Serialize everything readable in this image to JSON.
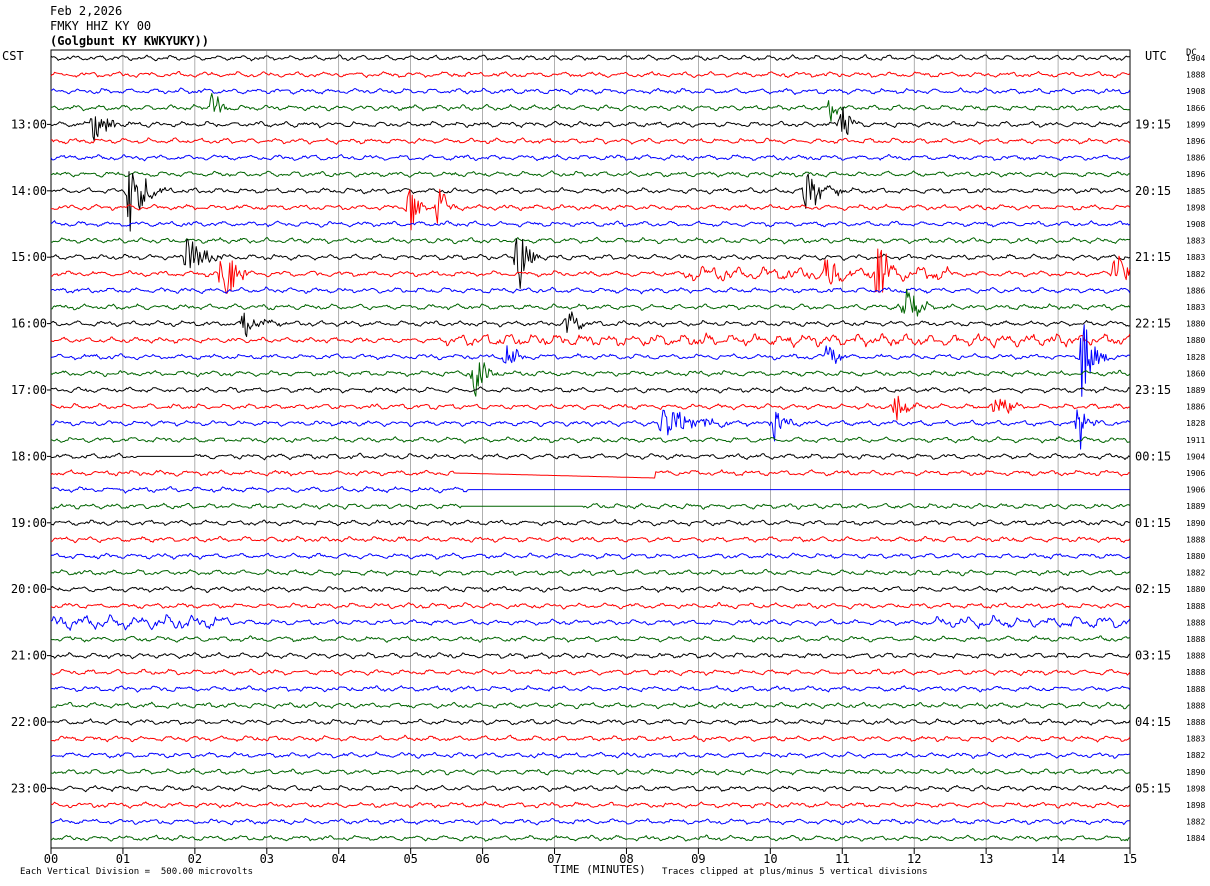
{
  "header": {
    "date": "Feb 2,2026",
    "station": "FMKY HHZ KY 00",
    "location": "(Golgbunt KY KWKYUKY))"
  },
  "axis_labels": {
    "left": "CST",
    "right": "UTC",
    "dc": "DC"
  },
  "footer": {
    "left": "Each Vertical Division =  500.00 microvolts",
    "right": "Traces clipped at plus/minus 5 vertical divisions",
    "xlabel": "TIME (MINUTES)"
  },
  "chart_data": {
    "type": "line",
    "subtype": "helicorder",
    "xlabel": "TIME (MINUTES)",
    "xlim": [
      0,
      15
    ],
    "x_ticks": [
      "00",
      "01",
      "02",
      "03",
      "04",
      "05",
      "06",
      "07",
      "08",
      "09",
      "10",
      "11",
      "12",
      "13",
      "14",
      "15"
    ],
    "trace_count": 48,
    "minutes_per_trace": 15,
    "trace_colors": [
      "#000000",
      "#ff0000",
      "#0000ff",
      "#006400"
    ],
    "left_time_labels": [
      {
        "trace": 4,
        "label": "13:00"
      },
      {
        "trace": 8,
        "label": "14:00"
      },
      {
        "trace": 12,
        "label": "15:00"
      },
      {
        "trace": 16,
        "label": "16:00"
      },
      {
        "trace": 20,
        "label": "17:00"
      },
      {
        "trace": 24,
        "label": "18:00"
      },
      {
        "trace": 28,
        "label": "19:00"
      },
      {
        "trace": 32,
        "label": "20:00"
      },
      {
        "trace": 36,
        "label": "21:00"
      },
      {
        "trace": 40,
        "label": "22:00"
      },
      {
        "trace": 44,
        "label": "23:00"
      }
    ],
    "right_time_labels": [
      {
        "trace": 4,
        "label": "19:15"
      },
      {
        "trace": 8,
        "label": "20:15"
      },
      {
        "trace": 12,
        "label": "21:15"
      },
      {
        "trace": 16,
        "label": "22:15"
      },
      {
        "trace": 20,
        "label": "23:15"
      },
      {
        "trace": 24,
        "label": "00:15"
      },
      {
        "trace": 28,
        "label": "01:15"
      },
      {
        "trace": 32,
        "label": "02:15"
      },
      {
        "trace": 36,
        "label": "03:15"
      },
      {
        "trace": 40,
        "label": "04:15"
      },
      {
        "trace": 44,
        "label": "05:15"
      }
    ],
    "dc_offsets": [
      "1904",
      "1888",
      "1908",
      "1866",
      "1899",
      "1896",
      "1886",
      "1896",
      "1885",
      "1898",
      "1908",
      "1883",
      "1883",
      "1882",
      "1886",
      "1883",
      "1880",
      "1880",
      "1828",
      "1860",
      "1889",
      "1886",
      "1828",
      "1911",
      "1904",
      "1906",
      "1906",
      "1889",
      "1890",
      "1888",
      "1880",
      "1882",
      "1880",
      "1888",
      "1888",
      "1888",
      "1888",
      "1888",
      "1888",
      "1888",
      "1888",
      "1883",
      "1882",
      "1890",
      "1898",
      "1898",
      "1882",
      "1884"
    ],
    "bursts": [
      {
        "trace": 4,
        "minute": 0.6,
        "amp": 16,
        "dur": 0.6
      },
      {
        "trace": 3,
        "minute": 2.25,
        "amp": 22,
        "dur": 0.25
      },
      {
        "trace": 3,
        "minute": 10.85,
        "amp": 16,
        "dur": 0.2
      },
      {
        "trace": 4,
        "minute": 11.0,
        "amp": 28,
        "dur": 0.25
      },
      {
        "trace": 8,
        "minute": 1.1,
        "amp": 45,
        "dur": 0.5
      },
      {
        "trace": 8,
        "minute": 10.5,
        "amp": 20,
        "dur": 0.8
      },
      {
        "trace": 9,
        "minute": 5.0,
        "amp": 32,
        "dur": 0.25
      },
      {
        "trace": 9,
        "minute": 5.4,
        "amp": 28,
        "dur": 0.25
      },
      {
        "trace": 12,
        "minute": 1.9,
        "amp": 22,
        "dur": 0.6
      },
      {
        "trace": 13,
        "minute": 2.4,
        "amp": 45,
        "dur": 0.35
      },
      {
        "trace": 12,
        "minute": 6.5,
        "amp": 40,
        "dur": 0.3
      },
      {
        "trace": 13,
        "minute": 10.8,
        "amp": 22,
        "dur": 0.3
      },
      {
        "trace": 13,
        "minute": 11.5,
        "amp": 38,
        "dur": 0.3
      },
      {
        "trace": 13,
        "minute": 14.8,
        "amp": 30,
        "dur": 0.3
      },
      {
        "trace": 15,
        "minute": 11.85,
        "amp": 32,
        "dur": 0.45
      },
      {
        "trace": 16,
        "minute": 2.7,
        "amp": 14,
        "dur": 0.6
      },
      {
        "trace": 16,
        "minute": 7.2,
        "amp": 18,
        "dur": 0.3
      },
      {
        "trace": 18,
        "minute": 6.35,
        "amp": 16,
        "dur": 0.3
      },
      {
        "trace": 18,
        "minute": 10.8,
        "amp": 16,
        "dur": 0.3
      },
      {
        "trace": 18,
        "minute": 14.35,
        "amp": 60,
        "dur": 0.35
      },
      {
        "trace": 19,
        "minute": 5.9,
        "amp": 24,
        "dur": 0.4
      },
      {
        "trace": 21,
        "minute": 11.75,
        "amp": 18,
        "dur": 0.35
      },
      {
        "trace": 21,
        "minute": 13.15,
        "amp": 30,
        "dur": 0.3
      },
      {
        "trace": 22,
        "minute": 8.5,
        "amp": 18,
        "dur": 1.2
      },
      {
        "trace": 22,
        "minute": 10.05,
        "amp": 16,
        "dur": 0.4
      },
      {
        "trace": 22,
        "minute": 14.3,
        "amp": 30,
        "dur": 0.25
      }
    ],
    "noisy_spans": [
      {
        "trace": 34,
        "from": 0,
        "to": 2.5,
        "amp": 7
      },
      {
        "trace": 34,
        "from": 12.3,
        "to": 15,
        "amp": 6
      },
      {
        "trace": 13,
        "from": 8.8,
        "to": 12.5,
        "amp": 7
      },
      {
        "trace": 17,
        "from": 5.5,
        "to": 15,
        "amp": 6
      }
    ],
    "gaps": [
      {
        "trace": 24,
        "from": 1.2,
        "to": 2.0
      },
      {
        "trace": 25,
        "from": 5.6,
        "to": 8.4
      },
      {
        "trace": 26,
        "from": 5.8,
        "to": 15
      },
      {
        "trace": 27,
        "from": 5.7,
        "to": 7.4
      }
    ]
  }
}
